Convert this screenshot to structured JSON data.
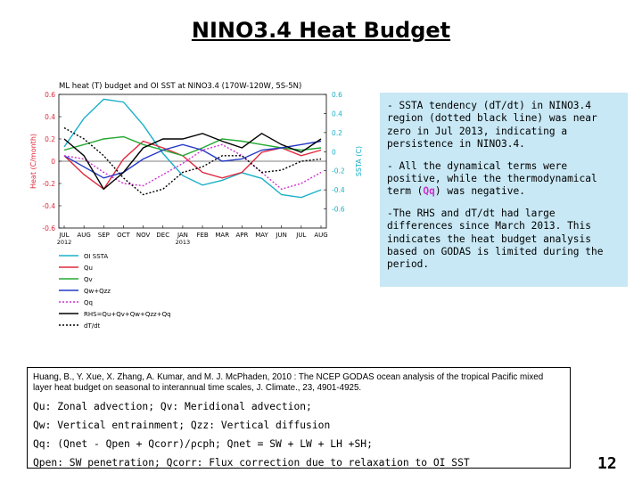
{
  "slide": {
    "title": "NINO3.4 Heat Budget",
    "page_number": "12"
  },
  "info_box": {
    "bullet1": "- SSTA tendency (dT/dt) in NINO3.4 region (dotted black line) was near zero in Jul 2013, indicating a persistence in NINO3.4.",
    "bullet2_a": "- All the dynamical terms were positive, while the thermodynamical term (",
    "bullet2_q": "Qq",
    "bullet2_b": ") was negative.",
    "bullet3": "-The RHS and dT/dt had large differences since March 2013. This indicates the heat budget analysis based on GODAS is limited during the period."
  },
  "reference": {
    "citation": "Huang, B., Y. Xue, X. Zhang, A. Kumar, and M. J. McPhaden, 2010 : The NCEP GODAS ocean analysis of the tropical Pacific mixed layer heat budget on seasonal to interannual time scales, J. Climate., 23, 4901-4925.",
    "def1": "Qu: Zonal advection;    Qv: Meridional advection;",
    "def2": "Qw: Vertical entrainment;  Qzz: Vertical diffusion",
    "def3": "Qq: (Qnet - Qpen + Qcorr)/ρcph;  Qnet = SW + LW + LH +SH;",
    "def4": "Qpen: SW penetration; Qcorr: Flux correction due to relaxation to OI SST"
  },
  "chart_data": {
    "type": "line",
    "title": "ML heat (T) budget and OI SST at NINO3.4 (170W-120W, 5S-5N)",
    "ylabel_left": "Heat (C/month)",
    "ylabel_right": "SSTA (C)",
    "ylim_left": [
      -0.6,
      0.6
    ],
    "ylim_right": [
      -0.8,
      0.6
    ],
    "yticks_left": [
      "0.6",
      "0.4",
      "0.2",
      "0",
      "-0.2",
      "-0.4",
      "-0.6"
    ],
    "yticks_left_values": [
      0.6,
      0.4,
      0.2,
      0,
      -0.2,
      -0.4,
      -0.6
    ],
    "yticks_right": [
      "0.6",
      "0.4",
      "0.2",
      "0",
      "-0.2",
      "-0.4",
      "-0.6"
    ],
    "yticks_right_values": [
      0.6,
      0.4,
      0.2,
      0,
      -0.2,
      -0.4,
      -0.6
    ],
    "categories": [
      "JUL",
      "AUG",
      "SEP",
      "OCT",
      "NOV",
      "DEC",
      "JAN",
      "FEB",
      "MAR",
      "APR",
      "MAY",
      "JUN",
      "JUL",
      "AUG"
    ],
    "year_labels": [
      {
        "index": 0,
        "label": "2012"
      },
      {
        "index": 6,
        "label": "2013"
      }
    ],
    "grid": false,
    "legend_placement": "bottom",
    "series": [
      {
        "name": "OI SSTA",
        "axis": "right",
        "color": "#1ab0c8",
        "dash": "",
        "values": [
          0.05,
          0.35,
          0.55,
          0.52,
          0.28,
          -0.02,
          -0.25,
          -0.35,
          -0.3,
          -0.22,
          -0.28,
          -0.45,
          -0.48,
          -0.4
        ]
      },
      {
        "name": "Qu",
        "axis": "left",
        "color": "#e0283c",
        "dash": "",
        "values": [
          0.05,
          -0.12,
          -0.25,
          0.02,
          0.18,
          0.12,
          0.05,
          -0.1,
          -0.15,
          -0.1,
          0.08,
          0.12,
          0.05,
          0.1
        ]
      },
      {
        "name": "Qv",
        "axis": "left",
        "color": "#22a832",
        "dash": "",
        "values": [
          0.1,
          0.15,
          0.2,
          0.22,
          0.15,
          0.1,
          0.05,
          0.12,
          0.2,
          0.18,
          0.15,
          0.12,
          0.1,
          0.12
        ]
      },
      {
        "name": "Qw+Qzz",
        "axis": "left",
        "color": "#2438c8",
        "dash": "",
        "values": [
          0.05,
          -0.05,
          -0.15,
          -0.1,
          0.02,
          0.1,
          0.15,
          0.1,
          0.0,
          0.02,
          0.1,
          0.12,
          0.15,
          0.18
        ]
      },
      {
        "name": "Qq",
        "axis": "left",
        "color": "#d030d0",
        "dash": "2,2",
        "values": [
          0.05,
          0.02,
          -0.1,
          -0.2,
          -0.22,
          -0.12,
          -0.02,
          0.1,
          0.15,
          0.05,
          -0.1,
          -0.25,
          -0.2,
          -0.1
        ]
      },
      {
        "name": "RHS=Qu+Qv+Qw+Qzz+Qq",
        "axis": "left",
        "color": "#000000",
        "dash": "",
        "values": [
          0.2,
          0.05,
          -0.25,
          -0.1,
          0.12,
          0.2,
          0.2,
          0.25,
          0.18,
          0.12,
          0.25,
          0.15,
          0.08,
          0.2
        ]
      },
      {
        "name": "dT/dt",
        "axis": "left",
        "color": "#000000",
        "dash": "2,2",
        "values": [
          0.3,
          0.2,
          0.05,
          -0.15,
          -0.3,
          -0.25,
          -0.1,
          -0.05,
          0.05,
          0.05,
          -0.1,
          -0.08,
          0.0,
          0.02
        ]
      }
    ]
  }
}
